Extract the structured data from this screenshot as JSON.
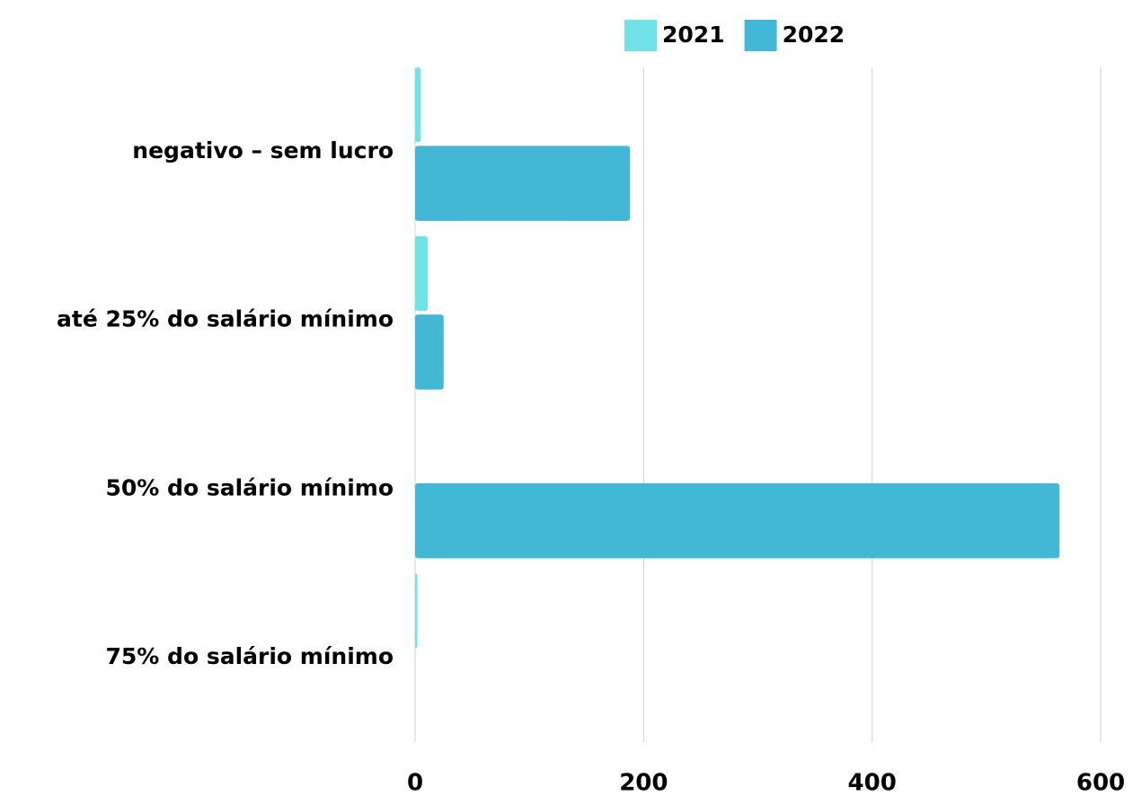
{
  "chart_data": {
    "type": "bar",
    "orientation": "horizontal",
    "categories": [
      "negativo – sem lucro",
      "até 25% do salário mínimo",
      "50% do salário mínimo",
      "75% do salário mínimo"
    ],
    "series": [
      {
        "name": "2021",
        "color": "#6fe3e8",
        "values": [
          5,
          11,
          0,
          2
        ]
      },
      {
        "name": "2022",
        "color": "#42b8d6",
        "values": [
          188,
          25,
          564,
          0
        ]
      }
    ],
    "xlim": [
      0,
      600
    ],
    "xticks": [
      0,
      200,
      400,
      600
    ],
    "grid": true,
    "legend": "top"
  }
}
